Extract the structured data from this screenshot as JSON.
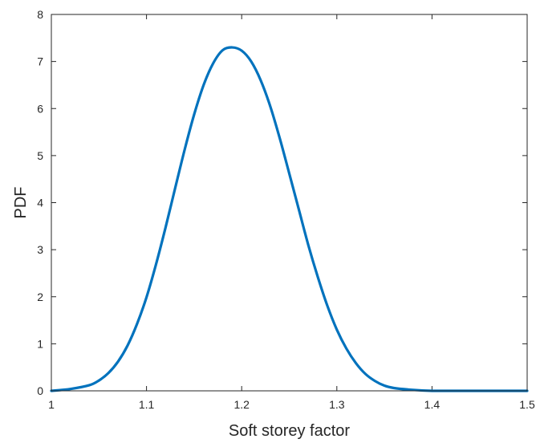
{
  "chart_data": {
    "type": "line",
    "title": "",
    "xlabel": "Soft storey factor",
    "ylabel": "PDF",
    "xlim": [
      1,
      1.5
    ],
    "ylim": [
      0,
      8
    ],
    "xticks": [
      1,
      1.1,
      1.2,
      1.3,
      1.4,
      1.5
    ],
    "xtick_labels": [
      "1",
      "1.1",
      "1.2",
      "1.3",
      "1.4",
      "1.5"
    ],
    "yticks": [
      0,
      1,
      2,
      3,
      4,
      5,
      6,
      7,
      8
    ],
    "ytick_labels": [
      "0",
      "1",
      "2",
      "3",
      "4",
      "5",
      "6",
      "7",
      "8"
    ],
    "grid": false,
    "box": true,
    "legend": "none",
    "series": [
      {
        "color": "#0072BD",
        "x": [
          1.0,
          1.02,
          1.04,
          1.05,
          1.06,
          1.07,
          1.08,
          1.09,
          1.1,
          1.11,
          1.12,
          1.13,
          1.14,
          1.15,
          1.16,
          1.17,
          1.18,
          1.19,
          1.2,
          1.21,
          1.22,
          1.23,
          1.24,
          1.25,
          1.26,
          1.27,
          1.28,
          1.29,
          1.3,
          1.31,
          1.32,
          1.33,
          1.34,
          1.35,
          1.36,
          1.38,
          1.4,
          1.42,
          1.45,
          1.5
        ],
        "y": [
          0.0,
          0.04,
          0.12,
          0.22,
          0.38,
          0.62,
          0.96,
          1.42,
          1.99,
          2.69,
          3.47,
          4.3,
          5.12,
          5.87,
          6.5,
          6.96,
          7.24,
          7.3,
          7.23,
          7.0,
          6.6,
          6.05,
          5.37,
          4.62,
          3.86,
          3.1,
          2.42,
          1.81,
          1.3,
          0.9,
          0.59,
          0.36,
          0.21,
          0.11,
          0.06,
          0.02,
          0.0,
          0.0,
          0.0,
          0.0
        ]
      }
    ]
  }
}
